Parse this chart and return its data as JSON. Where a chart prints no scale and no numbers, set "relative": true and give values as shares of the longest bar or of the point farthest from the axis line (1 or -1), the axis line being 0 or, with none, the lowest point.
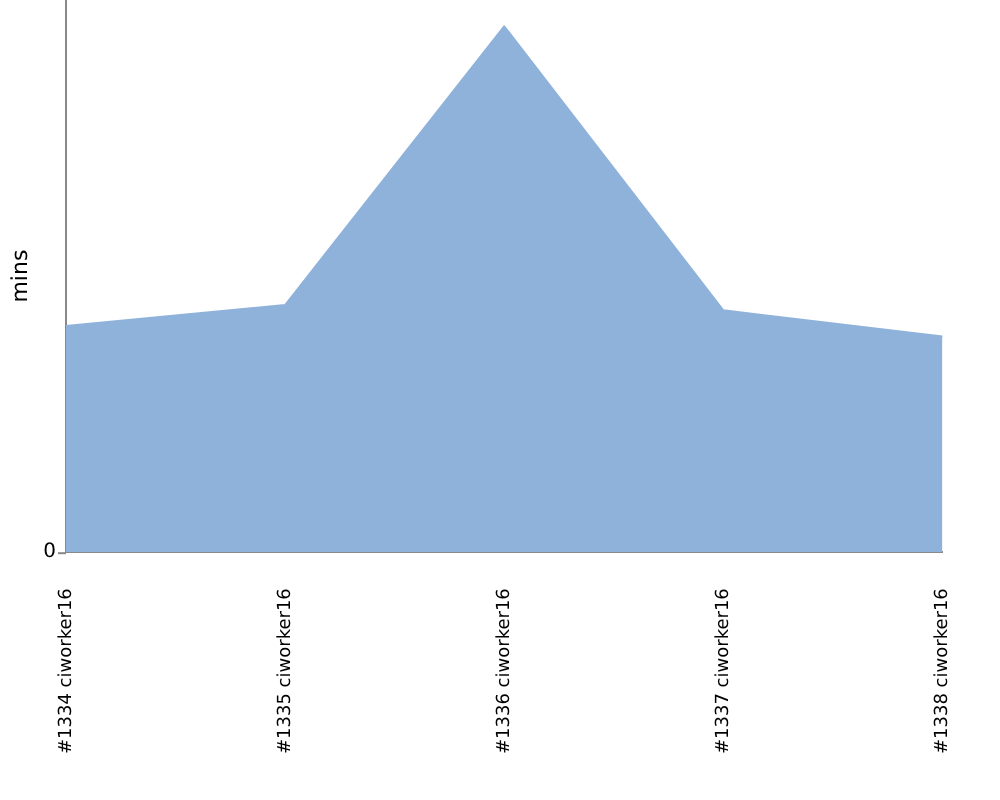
{
  "chart_data": {
    "type": "area",
    "ylabel": "mins",
    "relative": true,
    "categories": [
      "#1334 ciworker16",
      "#1335 ciworker16",
      "#1336 ciworker16",
      "#1337 ciworker16",
      "#1338 ciworker16"
    ],
    "series": [
      {
        "color": "#8fb2da",
        "values": [
          0.43,
          0.47,
          1,
          0.46,
          0.41
        ]
      }
    ],
    "annotations": [
      "0"
    ],
    "grid": false,
    "legend": false
  }
}
